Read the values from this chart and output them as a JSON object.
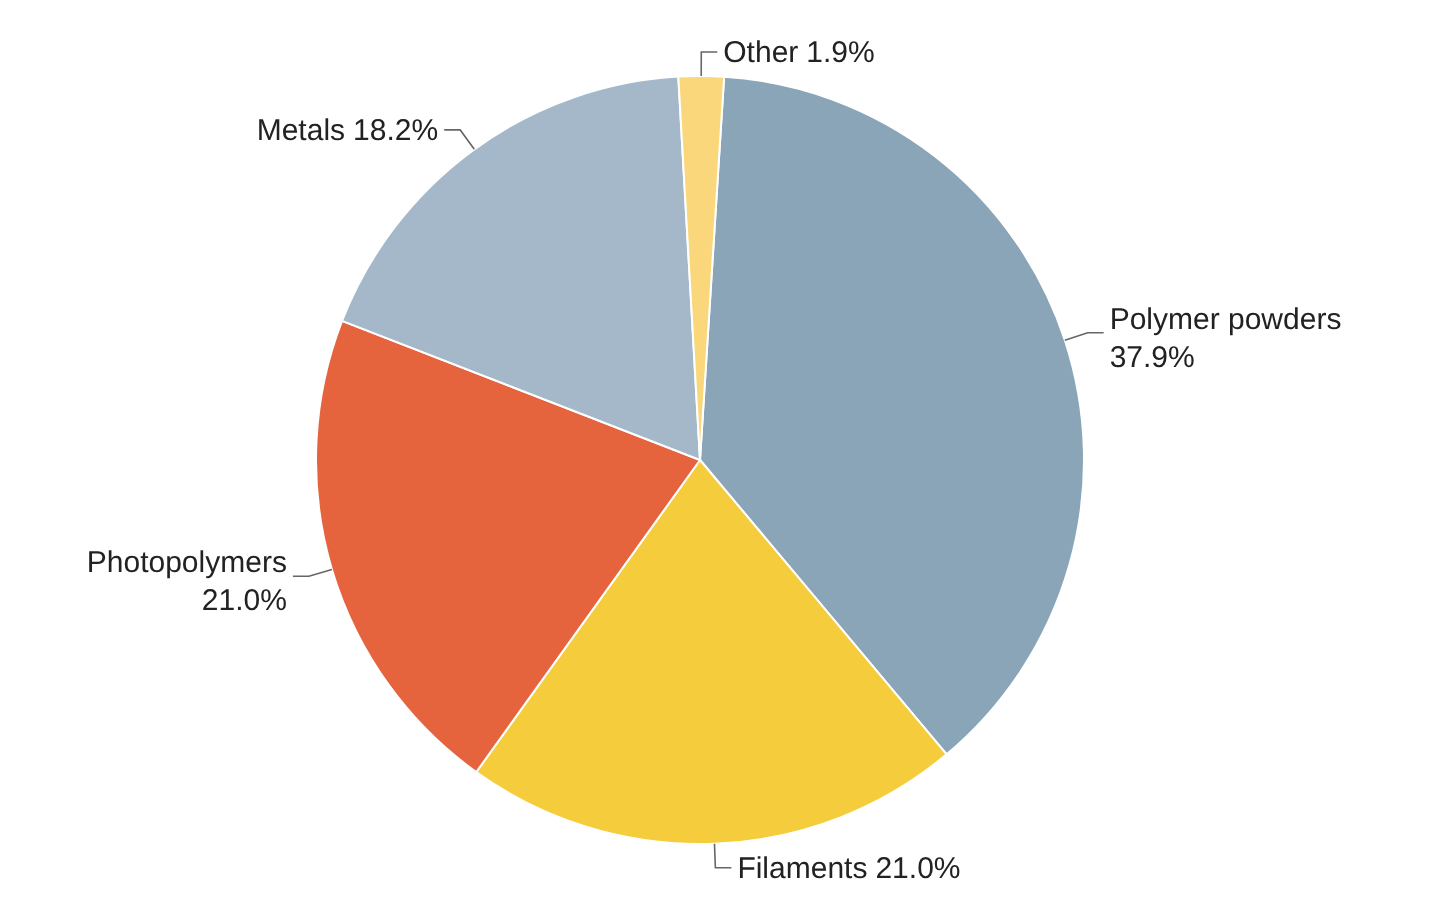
{
  "chart_data": {
    "type": "pie",
    "categories": [
      "Polymer powders",
      "Filaments",
      "Photopolymers",
      "Metals",
      "Other"
    ],
    "values": [
      37.9,
      21.0,
      21.0,
      18.2,
      1.9
    ],
    "value_labels": [
      "37.9%",
      "21.0%",
      "21.0%",
      "18.2%",
      "1.9%"
    ],
    "colors": [
      "#8ba5b8",
      "#f5cd3c",
      "#e5643e",
      "#a5b8ca",
      "#f9d77a"
    ]
  }
}
